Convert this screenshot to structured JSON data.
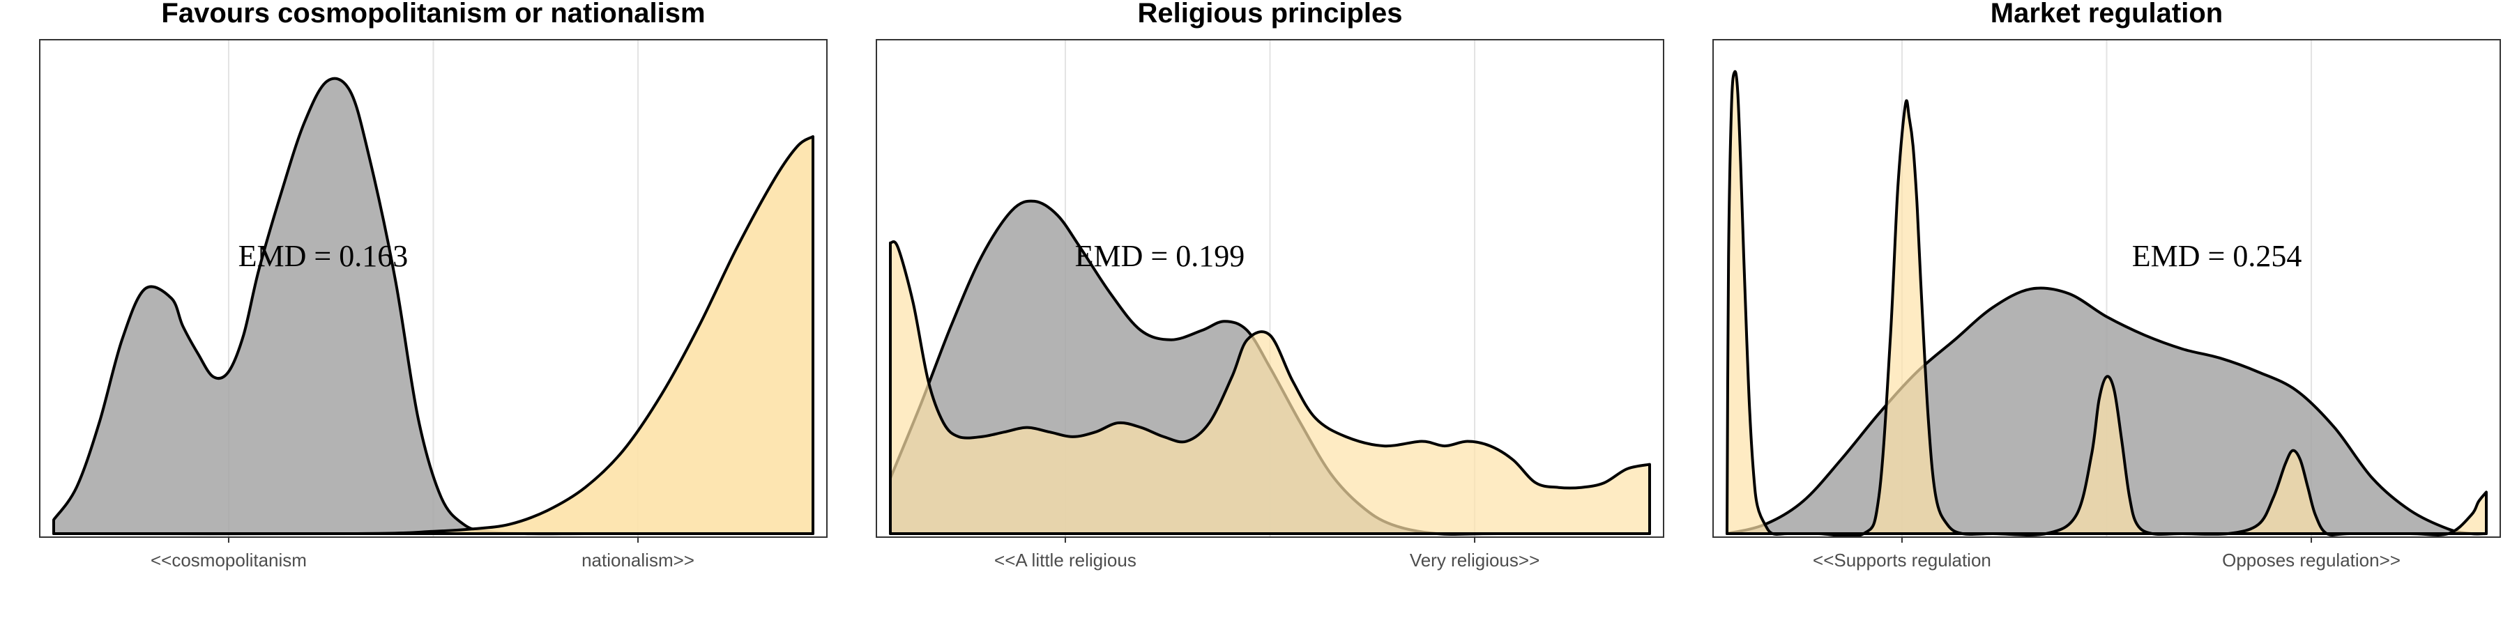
{
  "chart_data": [
    {
      "type": "area",
      "title": "Favours cosmopolitanism or nationalism",
      "annotation": "EMD = 0.163",
      "tick_labels": [
        "<<cosmopolitanism",
        "nationalism>>"
      ],
      "xlim": [
        0,
        1
      ],
      "ylim": [
        0,
        1.07
      ],
      "grid": true,
      "series": [
        {
          "color": "#a6a6a6",
          "opacity": 0.85,
          "x": [
            0,
            0.03,
            0.06,
            0.09,
            0.12,
            0.155,
            0.17,
            0.19,
            0.21,
            0.23,
            0.25,
            0.27,
            0.3,
            0.33,
            0.36,
            0.39,
            0.415,
            0.45,
            0.48,
            0.51,
            0.54,
            0.57,
            0.62,
            0.7,
            0.8,
            0.9,
            1.0
          ],
          "y": [
            0.03,
            0.1,
            0.24,
            0.42,
            0.53,
            0.51,
            0.45,
            0.39,
            0.34,
            0.35,
            0.43,
            0.57,
            0.74,
            0.89,
            0.98,
            0.96,
            0.82,
            0.55,
            0.25,
            0.08,
            0.02,
            0.005,
            0.0,
            0.0,
            0.0,
            0.0,
            0.0
          ]
        },
        {
          "color": "#fde2a9",
          "opacity": 0.9,
          "x": [
            0,
            0.4,
            0.5,
            0.55,
            0.6,
            0.65,
            0.7,
            0.75,
            0.8,
            0.85,
            0.9,
            0.95,
            0.98,
            1.0
          ],
          "y": [
            0.0,
            0.0,
            0.005,
            0.01,
            0.02,
            0.05,
            0.1,
            0.18,
            0.3,
            0.45,
            0.62,
            0.77,
            0.84,
            0.86
          ]
        }
      ]
    },
    {
      "type": "area",
      "title": "Religious principles",
      "annotation": "EMD = 0.199",
      "tick_labels": [
        "<<A little religious",
        "Very religious>>"
      ],
      "xlim": [
        0,
        1
      ],
      "ylim": [
        0,
        1.07
      ],
      "grid": true,
      "series": [
        {
          "color": "#a6a6a6",
          "opacity": 0.85,
          "x": [
            0,
            0.04,
            0.08,
            0.12,
            0.16,
            0.19,
            0.22,
            0.25,
            0.29,
            0.33,
            0.37,
            0.41,
            0.44,
            0.47,
            0.5,
            0.54,
            0.58,
            0.62,
            0.66,
            0.72,
            0.8,
            1.0
          ],
          "y": [
            0.12,
            0.28,
            0.45,
            0.6,
            0.7,
            0.72,
            0.69,
            0.62,
            0.52,
            0.44,
            0.42,
            0.44,
            0.46,
            0.44,
            0.36,
            0.24,
            0.13,
            0.06,
            0.02,
            0.0,
            0.0,
            0.0
          ]
        },
        {
          "color": "#fde2a9",
          "opacity": 0.7,
          "x": [
            0,
            0.01,
            0.03,
            0.05,
            0.07,
            0.09,
            0.12,
            0.15,
            0.18,
            0.21,
            0.24,
            0.27,
            0.3,
            0.33,
            0.36,
            0.39,
            0.42,
            0.45,
            0.47,
            0.5,
            0.53,
            0.56,
            0.6,
            0.65,
            0.7,
            0.73,
            0.76,
            0.79,
            0.82,
            0.85,
            0.88,
            0.91,
            0.94,
            0.97,
            1.0
          ],
          "y": [
            0.63,
            0.62,
            0.5,
            0.33,
            0.24,
            0.21,
            0.21,
            0.22,
            0.23,
            0.22,
            0.21,
            0.22,
            0.24,
            0.23,
            0.21,
            0.2,
            0.24,
            0.34,
            0.42,
            0.43,
            0.33,
            0.25,
            0.21,
            0.19,
            0.2,
            0.19,
            0.2,
            0.19,
            0.16,
            0.11,
            0.1,
            0.1,
            0.11,
            0.14,
            0.15
          ]
        }
      ]
    },
    {
      "type": "area",
      "title": "Market regulation",
      "annotation": "EMD = 0.254",
      "tick_labels": [
        "<<Supports regulation",
        "Opposes regulation>>"
      ],
      "xlim": [
        0,
        1
      ],
      "ylim": [
        0,
        1.07
      ],
      "grid": true,
      "series": [
        {
          "color": "#a6a6a6",
          "opacity": 0.85,
          "x": [
            0,
            0.05,
            0.1,
            0.15,
            0.2,
            0.25,
            0.3,
            0.35,
            0.4,
            0.45,
            0.5,
            0.55,
            0.6,
            0.65,
            0.7,
            0.75,
            0.8,
            0.85,
            0.9,
            0.95,
            0.98,
            1.0
          ],
          "y": [
            0.0,
            0.02,
            0.07,
            0.16,
            0.26,
            0.35,
            0.42,
            0.49,
            0.53,
            0.52,
            0.47,
            0.43,
            0.4,
            0.38,
            0.35,
            0.31,
            0.23,
            0.12,
            0.05,
            0.01,
            0.0,
            0.0
          ]
        },
        {
          "color": "#fde2a9",
          "opacity": 0.7,
          "x": [
            0,
            0.002,
            0.006,
            0.01,
            0.014,
            0.018,
            0.022,
            0.026,
            0.03,
            0.035,
            0.04,
            0.05,
            0.06,
            0.08,
            0.12,
            0.18,
            0.2,
            0.215,
            0.225,
            0.235,
            0.24,
            0.245,
            0.25,
            0.255,
            0.265,
            0.275,
            0.29,
            0.31,
            0.35,
            0.42,
            0.46,
            0.48,
            0.49,
            0.5,
            0.51,
            0.52,
            0.53,
            0.54,
            0.56,
            0.6,
            0.66,
            0.7,
            0.72,
            0.735,
            0.745,
            0.755,
            0.765,
            0.775,
            0.79,
            0.82,
            0.9,
            0.95,
            0.98,
            0.99,
            1.0
          ],
          "y": [
            0.0,
            0.6,
            0.93,
            1.0,
            0.96,
            0.8,
            0.6,
            0.42,
            0.26,
            0.13,
            0.06,
            0.02,
            0.0,
            0.0,
            0.0,
            0.0,
            0.08,
            0.42,
            0.75,
            0.93,
            0.9,
            0.84,
            0.72,
            0.55,
            0.25,
            0.08,
            0.02,
            0.0,
            0.0,
            0.0,
            0.04,
            0.17,
            0.29,
            0.34,
            0.31,
            0.2,
            0.08,
            0.02,
            0.0,
            0.0,
            0.0,
            0.02,
            0.08,
            0.15,
            0.18,
            0.16,
            0.1,
            0.04,
            0.0,
            0.0,
            0.0,
            0.0,
            0.04,
            0.07,
            0.09
          ]
        }
      ]
    }
  ]
}
